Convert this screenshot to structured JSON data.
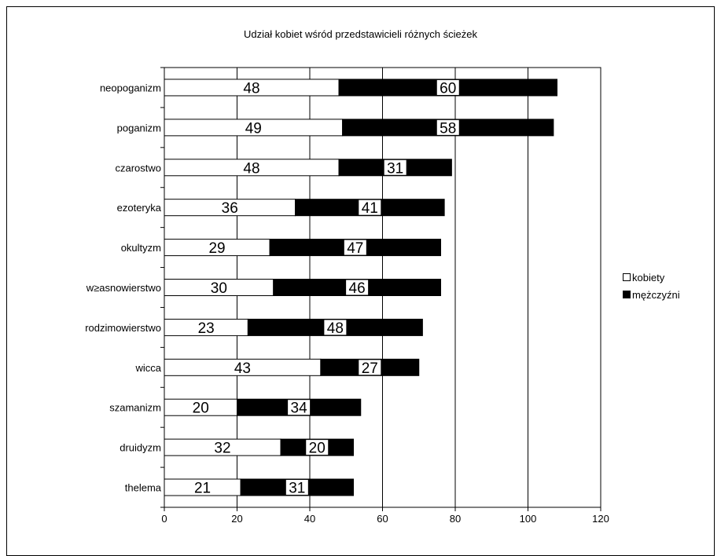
{
  "chart_data": {
    "type": "bar",
    "orientation": "horizontal",
    "stacked": true,
    "title": "Udział kobiet wśród przedstawicieli różnych ścieżek",
    "categories": [
      "neopoganizm",
      "poganizm",
      "czarostwo",
      "ezoteryka",
      "okultyzm",
      "w≥asnowierstwo",
      "rodzimowierstwo",
      "wicca",
      "szamanizm",
      "druidyzm",
      "thelema"
    ],
    "series": [
      {
        "name": "kobiety",
        "color": "#ffffff",
        "values": [
          48,
          49,
          48,
          36,
          29,
          30,
          23,
          43,
          20,
          32,
          21
        ]
      },
      {
        "name": "mężczyźni",
        "color": "#000000",
        "values": [
          60,
          58,
          31,
          41,
          47,
          46,
          48,
          27,
          34,
          20,
          31
        ]
      }
    ],
    "xlim": [
      0,
      120
    ],
    "x_ticks": [
      "0",
      "20",
      "40",
      "60",
      "80",
      "100",
      "120"
    ],
    "grid": "vertical",
    "legend_position": "right"
  }
}
